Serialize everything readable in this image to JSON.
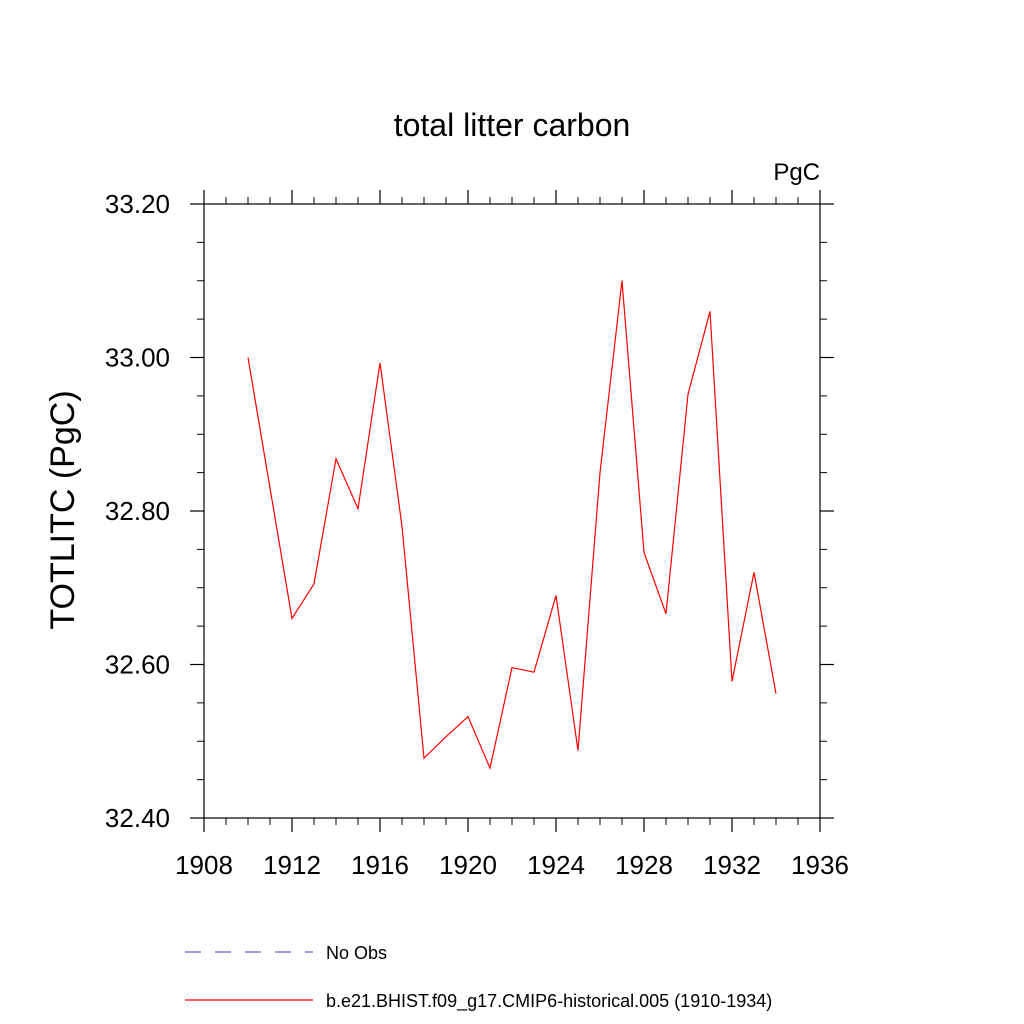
{
  "chart_data": {
    "type": "line",
    "title": "total litter carbon",
    "units": "PgC",
    "ylabel": "TOTLITC  (PgC)",
    "xlabel": "",
    "xlim": [
      1908,
      1936
    ],
    "ylim": [
      32.4,
      33.2
    ],
    "x_ticks": [
      "1908",
      "1912",
      "1916",
      "1920",
      "1924",
      "1928",
      "1932",
      "1936"
    ],
    "y_ticks": [
      "32.40",
      "32.60",
      "32.80",
      "33.00",
      "33.20"
    ],
    "grid": false,
    "legend_position": "bottom",
    "series": [
      {
        "name": "No Obs",
        "color": "#6a5acd",
        "style": "dashed",
        "x": [],
        "y": []
      },
      {
        "name": "b.e21.BHIST.f09_g17.CMIP6-historical.005 (1910-1934)",
        "color": "#ff0000",
        "style": "solid",
        "x": [
          1910,
          1911,
          1912,
          1913,
          1914,
          1915,
          1916,
          1917,
          1918,
          1919,
          1920,
          1921,
          1922,
          1923,
          1924,
          1925,
          1926,
          1927,
          1928,
          1929,
          1930,
          1931,
          1932,
          1933,
          1934
        ],
        "y": [
          33.0,
          32.83,
          32.66,
          32.705,
          32.868,
          32.803,
          32.993,
          32.78,
          32.478,
          32.506,
          32.532,
          32.465,
          32.596,
          32.59,
          32.69,
          32.488,
          32.85,
          33.1,
          32.746,
          32.666,
          32.952,
          33.06,
          32.578,
          32.72,
          32.562
        ]
      }
    ]
  }
}
